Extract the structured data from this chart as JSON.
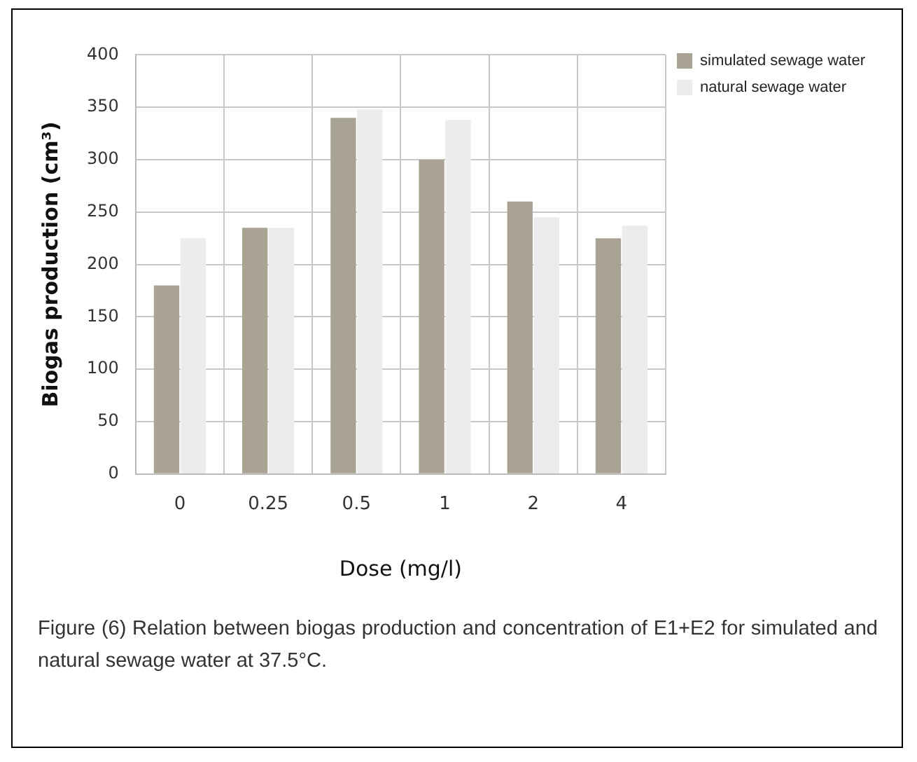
{
  "chart_data": {
    "type": "bar",
    "xlabel": "Dose (mg/l)",
    "ylabel": "Biogas production (cm³)",
    "categories": [
      "0",
      "0.25",
      "0.5",
      "1",
      "2",
      "4"
    ],
    "series": [
      {
        "name": "simulated sewage water",
        "color": "#a8a393",
        "values": [
          180,
          235,
          340,
          300,
          260,
          225
        ]
      },
      {
        "name": "natural sewage water",
        "color": "#ececec",
        "values": [
          225,
          235,
          348,
          338,
          245,
          237
        ]
      }
    ],
    "ylim": [
      0,
      400
    ],
    "yticks": [
      0,
      50,
      100,
      150,
      200,
      250,
      300,
      350,
      400
    ],
    "grid": true,
    "legend": "right",
    "annotations": [
      "Figure (6) Relation between biogas production and concentration of E1+E2 for simulated and natural sewage water at 37.5°C."
    ]
  }
}
